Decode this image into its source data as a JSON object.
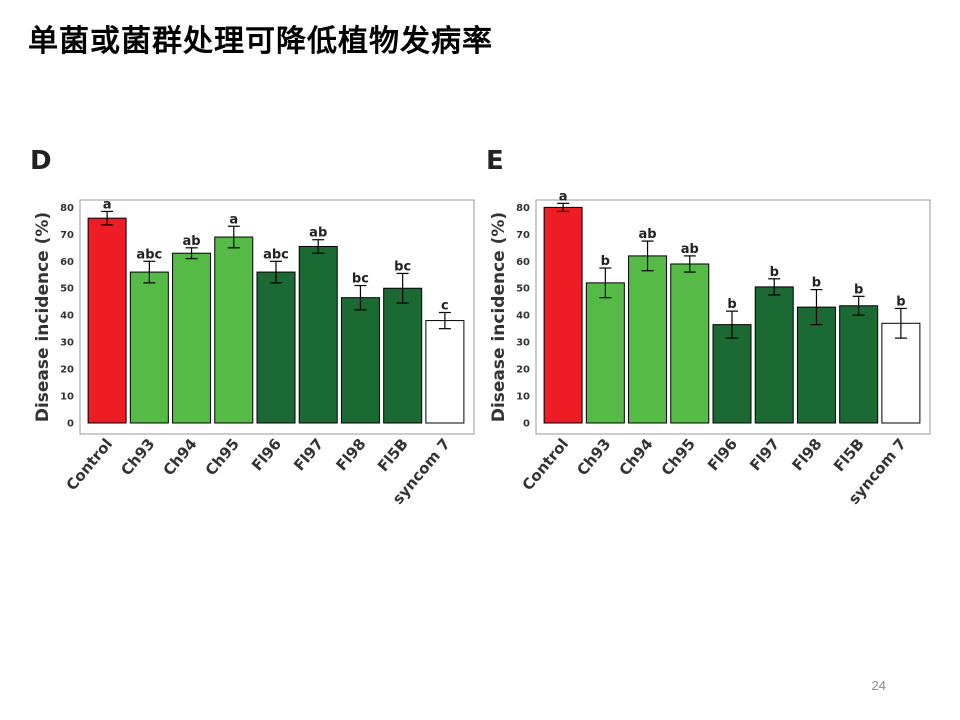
{
  "slide": {
    "title": "单菌或菌群处理可降低植物发病率",
    "page_number": "24"
  },
  "colors": {
    "control": "#ee1c25",
    "ch": "#56bb46",
    "fl": "#1b6a34",
    "syncom": "#ffffff",
    "bar_outline": "#000000"
  },
  "chart_data": [
    {
      "panel_label": "D",
      "type": "bar",
      "categories": [
        "Control",
        "Ch93",
        "Ch94",
        "Ch95",
        "Fl96",
        "Fl97",
        "Fl98",
        "Fl5B",
        "syncom 7"
      ],
      "values": [
        76,
        56,
        63,
        69,
        56,
        65.5,
        46.5,
        50,
        38
      ],
      "errors": [
        2.5,
        4,
        2,
        4,
        4,
        2.5,
        4.5,
        5.5,
        3
      ],
      "letters": [
        "a",
        "abc",
        "ab",
        "a",
        "abc",
        "ab",
        "bc",
        "bc",
        "c"
      ],
      "bar_color_groups": [
        "control",
        "ch",
        "ch",
        "ch",
        "fl",
        "fl",
        "fl",
        "fl",
        "syncom"
      ],
      "ylabel": "Disease incidence (%)",
      "yticks": [
        0,
        10,
        20,
        30,
        40,
        50,
        60,
        70,
        80
      ],
      "ylim": [
        0,
        82
      ],
      "grid": false
    },
    {
      "panel_label": "E",
      "type": "bar",
      "categories": [
        "Control",
        "Ch93",
        "Ch94",
        "Ch95",
        "Fl96",
        "Fl97",
        "Fl98",
        "Fl5B",
        "syncom 7"
      ],
      "values": [
        80,
        52,
        62,
        59,
        36.5,
        50.5,
        43,
        43.5,
        37
      ],
      "errors": [
        1.5,
        5.5,
        5.5,
        3,
        5,
        3,
        6.5,
        3.5,
        5.5
      ],
      "letters": [
        "a",
        "b",
        "ab",
        "ab",
        "b",
        "b",
        "b",
        "b",
        "b"
      ],
      "bar_color_groups": [
        "control",
        "ch",
        "ch",
        "ch",
        "fl",
        "fl",
        "fl",
        "fl",
        "syncom"
      ],
      "ylabel": "Disease incidence (%)",
      "yticks": [
        0,
        10,
        20,
        30,
        40,
        50,
        60,
        70,
        80
      ],
      "ylim": [
        0,
        82
      ],
      "grid": false
    }
  ]
}
